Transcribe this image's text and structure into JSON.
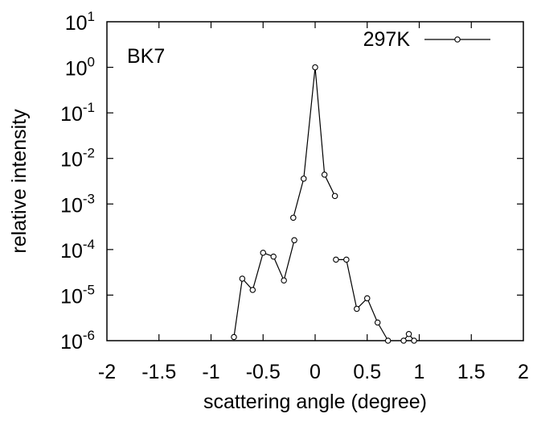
{
  "chart_data": {
    "type": "line",
    "xlabel": "scattering angle (degree)",
    "ylabel": "relative intensity",
    "xlim": [
      -2,
      2
    ],
    "ylim": [
      1e-06,
      10
    ],
    "y_scale": "log",
    "grid": false,
    "legend_position": "top-right",
    "annotation": "BK7",
    "x_ticks": [
      "-2",
      "-1.5",
      "-1",
      "-0.5",
      "0",
      "0.5",
      "1",
      "1.5",
      "2"
    ],
    "y_ticks": [
      {
        "base": "10",
        "exp": "-6",
        "value": 1e-06
      },
      {
        "base": "10",
        "exp": "-5",
        "value": 1e-05
      },
      {
        "base": "10",
        "exp": "-4",
        "value": 0.0001
      },
      {
        "base": "10",
        "exp": "-3",
        "value": 0.001
      },
      {
        "base": "10",
        "exp": "-2",
        "value": 0.01
      },
      {
        "base": "10",
        "exp": "-1",
        "value": 0.1
      },
      {
        "base": "10",
        "exp": "0",
        "value": 1
      },
      {
        "base": "10",
        "exp": "1",
        "value": 10
      }
    ],
    "series": [
      {
        "name": "297K",
        "color": "#000000",
        "marker": "open-circle",
        "points": [
          [
            -0.78,
            1.2e-06
          ],
          [
            -0.7,
            2.3e-05
          ],
          [
            -0.6,
            1.3e-05
          ],
          [
            -0.5,
            8.5e-05
          ],
          [
            -0.4,
            7e-05
          ],
          [
            -0.3,
            2.1e-05
          ],
          [
            -0.2,
            0.00016
          ],
          null,
          [
            -0.21,
            0.0005
          ],
          [
            -0.11,
            0.0036
          ],
          [
            0,
            1.0
          ],
          [
            0.09,
            0.0044
          ],
          [
            0.19,
            0.0015
          ],
          null,
          [
            0.2,
            6e-05
          ],
          [
            0.3,
            6e-05
          ],
          [
            0.4,
            5e-06
          ],
          [
            0.5,
            8.5e-06
          ],
          [
            0.6,
            2.5e-06
          ],
          [
            0.7,
            1e-06
          ],
          null,
          [
            0.85,
            1e-06
          ],
          [
            0.9,
            1.4e-06
          ],
          [
            0.95,
            1e-06
          ]
        ]
      }
    ]
  }
}
